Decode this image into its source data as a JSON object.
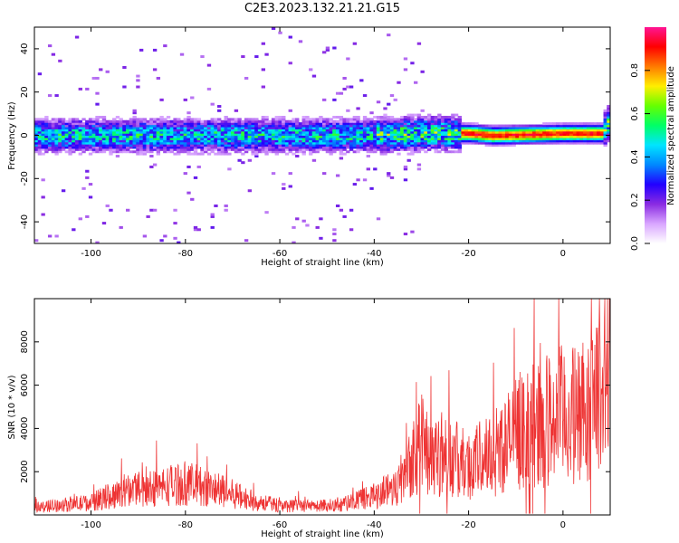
{
  "figure_title": "C2E3.2023.132.21.21.G15",
  "colors": {
    "snr_line": "#ee3333",
    "colormap": [
      "#ffffff",
      "#d9a6ff",
      "#8a2be2",
      "#2200ff",
      "#0088ff",
      "#00e5ff",
      "#00ff66",
      "#66ff00",
      "#ffee00",
      "#ff7a00",
      "#ff0000",
      "#ff1493"
    ]
  },
  "chart_data": [
    {
      "type": "heatmap",
      "title": "C2E3.2023.132.21.21.G15",
      "xlabel": "Height of straight line (km)",
      "ylabel": "Frequency (Hz)",
      "xlim": [
        -112,
        10
      ],
      "ylim": [
        -50,
        50
      ],
      "xticks": [
        -100,
        -80,
        -60,
        -40,
        -20,
        0
      ],
      "yticks": [
        -40,
        -20,
        0,
        20,
        40
      ],
      "colorbar": {
        "label": "Normalized spectral amplitude",
        "range": [
          0,
          1
        ],
        "ticks": [
          "0.0",
          "0.2",
          "0.4",
          "0.6",
          "0.8"
        ],
        "placement": "right"
      },
      "ridge_center_hz": [
        {
          "x": -110,
          "y": 0
        },
        {
          "x": -40,
          "y": 0
        },
        {
          "x": -30,
          "y": 1
        },
        {
          "x": -20,
          "y": 1
        },
        {
          "x": -15,
          "y": 0
        },
        {
          "x": 0,
          "y": 1
        },
        {
          "x": 8,
          "y": 1
        },
        {
          "x": 10,
          "y": 8
        }
      ]
    },
    {
      "type": "line",
      "xlabel": "Height of straight line (km)",
      "ylabel": "SNR (10 * v/v)",
      "xlim": [
        -112,
        10
      ],
      "ylim": [
        0,
        10000
      ],
      "xticks": [
        -100,
        -80,
        -60,
        -40,
        -20,
        0
      ],
      "yticks": [
        2000,
        4000,
        6000,
        8000
      ],
      "series": [
        {
          "x": [
            -112,
            -105,
            -100,
            -95,
            -90,
            -85,
            -80,
            -75,
            -70,
            -65,
            -60,
            -55,
            -50,
            -45,
            -40,
            -35,
            -32,
            -30,
            -28,
            -25,
            -22,
            -20,
            -18,
            -15,
            -12,
            -10,
            -8,
            -5,
            -3,
            0,
            3,
            5,
            7,
            8,
            9,
            10
          ],
          "y": [
            400,
            550,
            650,
            1100,
            1500,
            1500,
            1700,
            1400,
            1100,
            700,
            500,
            450,
            500,
            650,
            1000,
            1600,
            3200,
            3800,
            3500,
            3200,
            2800,
            2600,
            2900,
            3300,
            3800,
            4200,
            4800,
            4700,
            5000,
            5300,
            5200,
            5400,
            6000,
            7500,
            6000,
            8000
          ]
        }
      ]
    }
  ]
}
